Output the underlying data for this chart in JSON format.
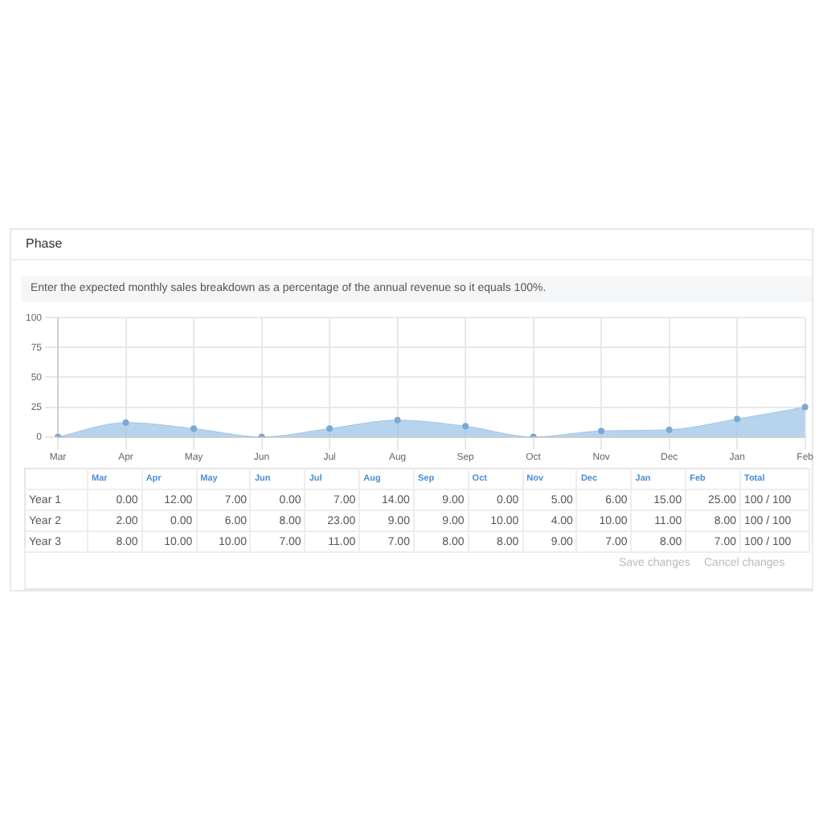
{
  "chart_data": [
    {
      "type": "area",
      "title": "Phase",
      "subtitle": "Enter the expected monthly sales breakdown as a percentage of the annual revenue so it equals 100%.",
      "categories": [
        "Mar",
        "Apr",
        "May",
        "Jun",
        "Jul",
        "Aug",
        "Sep",
        "Oct",
        "Nov",
        "Dec",
        "Jan",
        "Feb"
      ],
      "series": [
        {
          "color": "#9fc5e8",
          "values": [
            0,
            12,
            7,
            0,
            7,
            14,
            9,
            0,
            5,
            6,
            15,
            25
          ]
        }
      ],
      "ylim": [
        0,
        100
      ],
      "yticks": [
        0,
        25,
        50,
        75,
        100
      ],
      "grid": true,
      "legend": false,
      "marker": "circle"
    },
    {
      "type": "other",
      "categories": [
        "Mar",
        "Apr",
        "May",
        "Jun",
        "Jul",
        "Aug",
        "Sep",
        "Oct",
        "Nov",
        "Dec",
        "Jan",
        "Feb"
      ],
      "series": [
        {
          "name": "Year 1",
          "values": [
            0,
            12,
            7,
            0,
            7,
            14,
            9,
            0,
            5,
            6,
            15,
            25
          ],
          "value_labels": [
            "0.00",
            "12.00",
            "7.00",
            "0.00",
            "7.00",
            "14.00",
            "9.00",
            "0.00",
            "5.00",
            "6.00",
            "15.00",
            "25.00"
          ]
        },
        {
          "name": "Year 2",
          "values": [
            2,
            0,
            6,
            8,
            23,
            9,
            9,
            10,
            4,
            10,
            11,
            8
          ],
          "value_labels": [
            "2.00",
            "0.00",
            "6.00",
            "8.00",
            "23.00",
            "9.00",
            "9.00",
            "10.00",
            "4.00",
            "10.00",
            "11.00",
            "8.00"
          ]
        },
        {
          "name": "Year 3",
          "values": [
            8,
            10,
            10,
            7,
            11,
            7,
            8,
            8,
            9,
            7,
            8,
            7
          ],
          "value_labels": [
            "8.00",
            "10.00",
            "10.00",
            "7.00",
            "11.00",
            "7.00",
            "8.00",
            "8.00",
            "9.00",
            "7.00",
            "8.00",
            "7.00"
          ]
        }
      ],
      "totals": [
        "100 / 100",
        "100 / 100",
        "100 / 100"
      ],
      "annotations": [
        "Total",
        "Save changes",
        "Cancel changes"
      ]
    }
  ]
}
